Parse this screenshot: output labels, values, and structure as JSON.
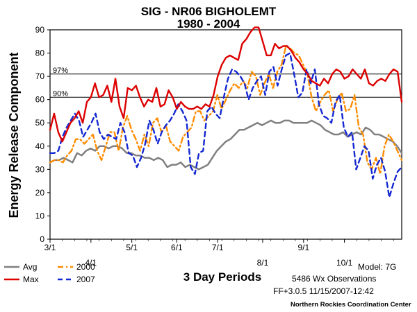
{
  "chart_data": {
    "type": "line",
    "title": "SIG - NR06 BIGHOLEMT",
    "subtitle": "1980 - 2004",
    "xlabel": "3 Day Periods",
    "ylabel": "Energy Release Component",
    "ylim": [
      0,
      90
    ],
    "yticks": [
      0,
      10,
      20,
      30,
      40,
      50,
      60,
      70,
      80,
      90
    ],
    "x_ticks_upper": [
      "3/1",
      "5/1",
      "6/1",
      "7/1",
      "9/1"
    ],
    "x_ticks_lower": [
      "4/1",
      "8/1",
      "10/1"
    ],
    "reference_lines": [
      {
        "label": "97%",
        "value": 71
      },
      {
        "label": "90%",
        "value": 61
      }
    ],
    "series": [
      {
        "name": "Avg",
        "color": "#808080",
        "style": "solid",
        "values": [
          33,
          34,
          34,
          35,
          34,
          33,
          37,
          36,
          38,
          39,
          38,
          40,
          40,
          39,
          40,
          40,
          39,
          37,
          37,
          36,
          36,
          35,
          35,
          34,
          35,
          34,
          31,
          32,
          32,
          33,
          31,
          32,
          31,
          30,
          31,
          32,
          35,
          38,
          40,
          42,
          43,
          45,
          47,
          47,
          48,
          49,
          50,
          49,
          50,
          51,
          50,
          50,
          51,
          51,
          50,
          50,
          50,
          50,
          51,
          50,
          49,
          47,
          46,
          45,
          45,
          46,
          44,
          45,
          46,
          45,
          48,
          47,
          45,
          45,
          44,
          43,
          42,
          40,
          37
        ]
      },
      {
        "name": "Max",
        "color": "#dc0000",
        "style": "solid",
        "values": [
          47,
          54,
          46,
          42,
          46,
          50,
          52,
          55,
          50,
          59,
          61,
          67,
          61,
          62,
          66,
          59,
          69,
          57,
          52,
          65,
          64,
          66,
          61,
          57,
          60,
          59,
          65,
          57,
          58,
          64,
          61,
          56,
          59,
          57,
          56,
          56,
          57,
          56,
          58,
          57,
          62,
          70,
          75,
          78,
          79,
          78,
          77,
          84,
          86,
          89,
          91,
          91,
          85,
          79,
          79,
          84,
          82,
          83,
          83,
          81,
          78,
          76,
          73,
          71,
          68,
          67,
          66,
          69,
          67,
          71,
          73,
          72,
          69,
          70,
          73,
          71,
          69,
          73,
          67,
          66,
          68,
          69,
          68,
          71,
          73,
          72,
          59
        ]
      },
      {
        "name": "2000",
        "color": "#ff8c00",
        "style": "dashdot",
        "values": [
          33,
          34,
          34,
          33,
          36,
          38,
          43,
          43,
          41,
          43,
          45,
          38,
          34,
          40,
          46,
          46,
          38,
          48,
          53,
          47,
          43,
          38,
          45,
          40,
          50,
          52,
          46,
          49,
          42,
          40,
          38,
          44,
          46,
          48,
          55,
          55,
          51,
          53,
          55,
          62,
          56,
          60,
          64,
          67,
          65,
          68,
          65,
          72,
          70,
          62,
          67,
          71,
          65,
          72,
          75,
          83,
          82,
          80,
          79,
          75,
          71,
          61,
          55,
          59,
          62,
          64,
          55,
          60,
          63,
          55,
          56,
          62,
          48,
          45,
          33,
          30,
          35,
          28,
          40,
          45,
          42,
          38,
          34
        ]
      },
      {
        "name": "2007",
        "color": "#1428d2",
        "style": "dashed",
        "values": [
          37,
          37,
          38,
          44,
          48,
          51,
          54,
          51,
          44,
          47,
          50,
          54,
          46,
          43,
          45,
          44,
          43,
          50,
          46,
          37,
          36,
          31,
          35,
          41,
          51,
          47,
          41,
          46,
          49,
          51,
          54,
          58,
          55,
          51,
          31,
          28,
          37,
          38,
          55,
          57,
          54,
          52,
          61,
          69,
          73,
          72,
          70,
          67,
          60,
          65,
          68,
          70,
          62,
          72,
          74,
          66,
          73,
          79,
          80,
          71,
          61,
          63,
          73,
          67,
          73,
          58,
          53,
          52,
          50,
          59,
          62,
          48,
          44,
          46,
          30,
          35,
          40,
          38,
          26,
          32,
          35,
          29,
          18,
          24,
          29,
          31
        ]
      }
    ]
  },
  "legend": [
    {
      "name": "Avg",
      "color": "#808080",
      "style": "solid"
    },
    {
      "name": "Max",
      "color": "#dc0000",
      "style": "solid"
    },
    {
      "name": "2000",
      "color": "#ff8c00",
      "style": "dashdot"
    },
    {
      "name": "2007",
      "color": "#1428d2",
      "style": "dashed"
    }
  ],
  "footer": {
    "model": "Model: 7G",
    "observations": "5486 Wx Observations",
    "version": "FF+3.0.5 11/15/2007-12:42",
    "credit": "Northern Rockies Coordination Center"
  }
}
